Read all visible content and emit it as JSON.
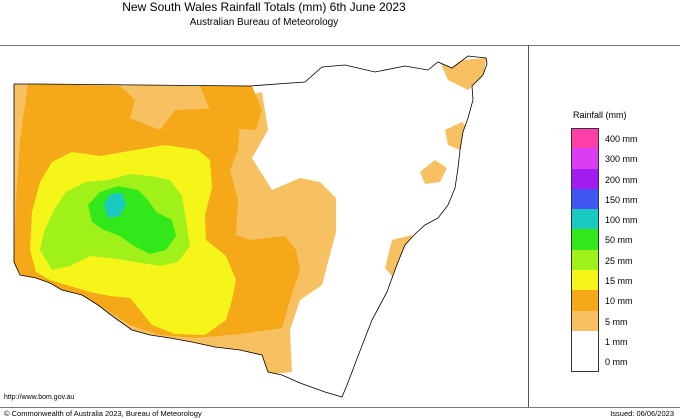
{
  "header": {
    "title": "New South Wales Rainfall Totals (mm)     6th June 2023",
    "subtitle": "Australian Bureau of Meteorology"
  },
  "legend": {
    "title": "Rainfall (mm)",
    "items": [
      {
        "label": "400 mm",
        "color": "#ff3fa8"
      },
      {
        "label": "300 mm",
        "color": "#d93ff0"
      },
      {
        "label": "200 mm",
        "color": "#a11cf0"
      },
      {
        "label": "150 mm",
        "color": "#3f57f0"
      },
      {
        "label": "100 mm",
        "color": "#19c9c2"
      },
      {
        "label": "50 mm",
        "color": "#33e81a"
      },
      {
        "label": "25 mm",
        "color": "#a0f01a"
      },
      {
        "label": "15 mm",
        "color": "#f5f51a"
      },
      {
        "label": "10 mm",
        "color": "#f5a818"
      },
      {
        "label": "5 mm",
        "color": "#f7c060"
      },
      {
        "label": "1 mm",
        "color": "#ffffff"
      },
      {
        "label": "0 mm",
        "color": "#ffffff"
      }
    ]
  },
  "footer": {
    "url": "http://www.bom.gov.au",
    "copyright": "© Commonwealth of Australia 2023, Bureau of Meteorology",
    "issued": "Issued: 06/06/2023"
  },
  "colors": {
    "light_orange": "#f7c060",
    "orange": "#f5a818",
    "yellow": "#f5f51a",
    "yellow_green": "#a0f01a",
    "green": "#33e81a",
    "teal": "#19c9c2"
  }
}
